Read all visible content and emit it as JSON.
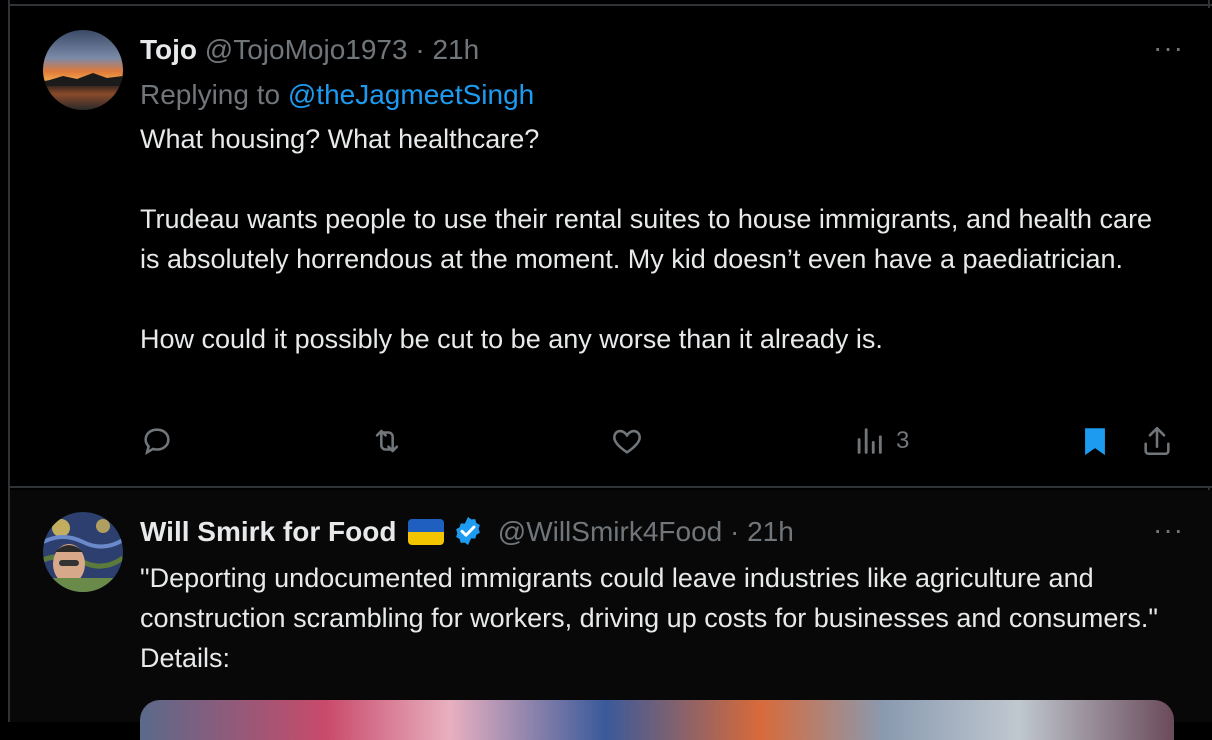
{
  "tweets": [
    {
      "name": "Tojo",
      "handle": "@TojoMojo1973",
      "separator": "·",
      "time": "21h",
      "replying_prefix": "Replying to",
      "replying_to": "@theJagmeetSingh",
      "paragraphs": [
        "What housing? What healthcare?",
        "Trudeau wants people to use their rental suites to house immigrants, and health care is absolutely horrendous at the moment. My kid doesn’t even have a paediatrician.",
        "How could it possibly be cut to be any worse than it already is."
      ],
      "more_label": "···",
      "views": "3",
      "icons": [
        "reply-icon",
        "retweet-icon",
        "like-icon",
        "views-icon",
        "bookmark-icon",
        "share-icon"
      ],
      "bookmark_color": "#1d9bf0"
    },
    {
      "name": "Will Smirk for Food",
      "flag": "ukraine-flag",
      "verified": true,
      "handle": "@WillSmirk4Food",
      "separator": "·",
      "time": "21h",
      "text": "\"Deporting undocumented immigrants could leave industries like agriculture and construction scrambling for workers, driving up costs for businesses and consumers.\" Details:",
      "more_label": "···",
      "verified_color": "#1d9bf0"
    }
  ]
}
